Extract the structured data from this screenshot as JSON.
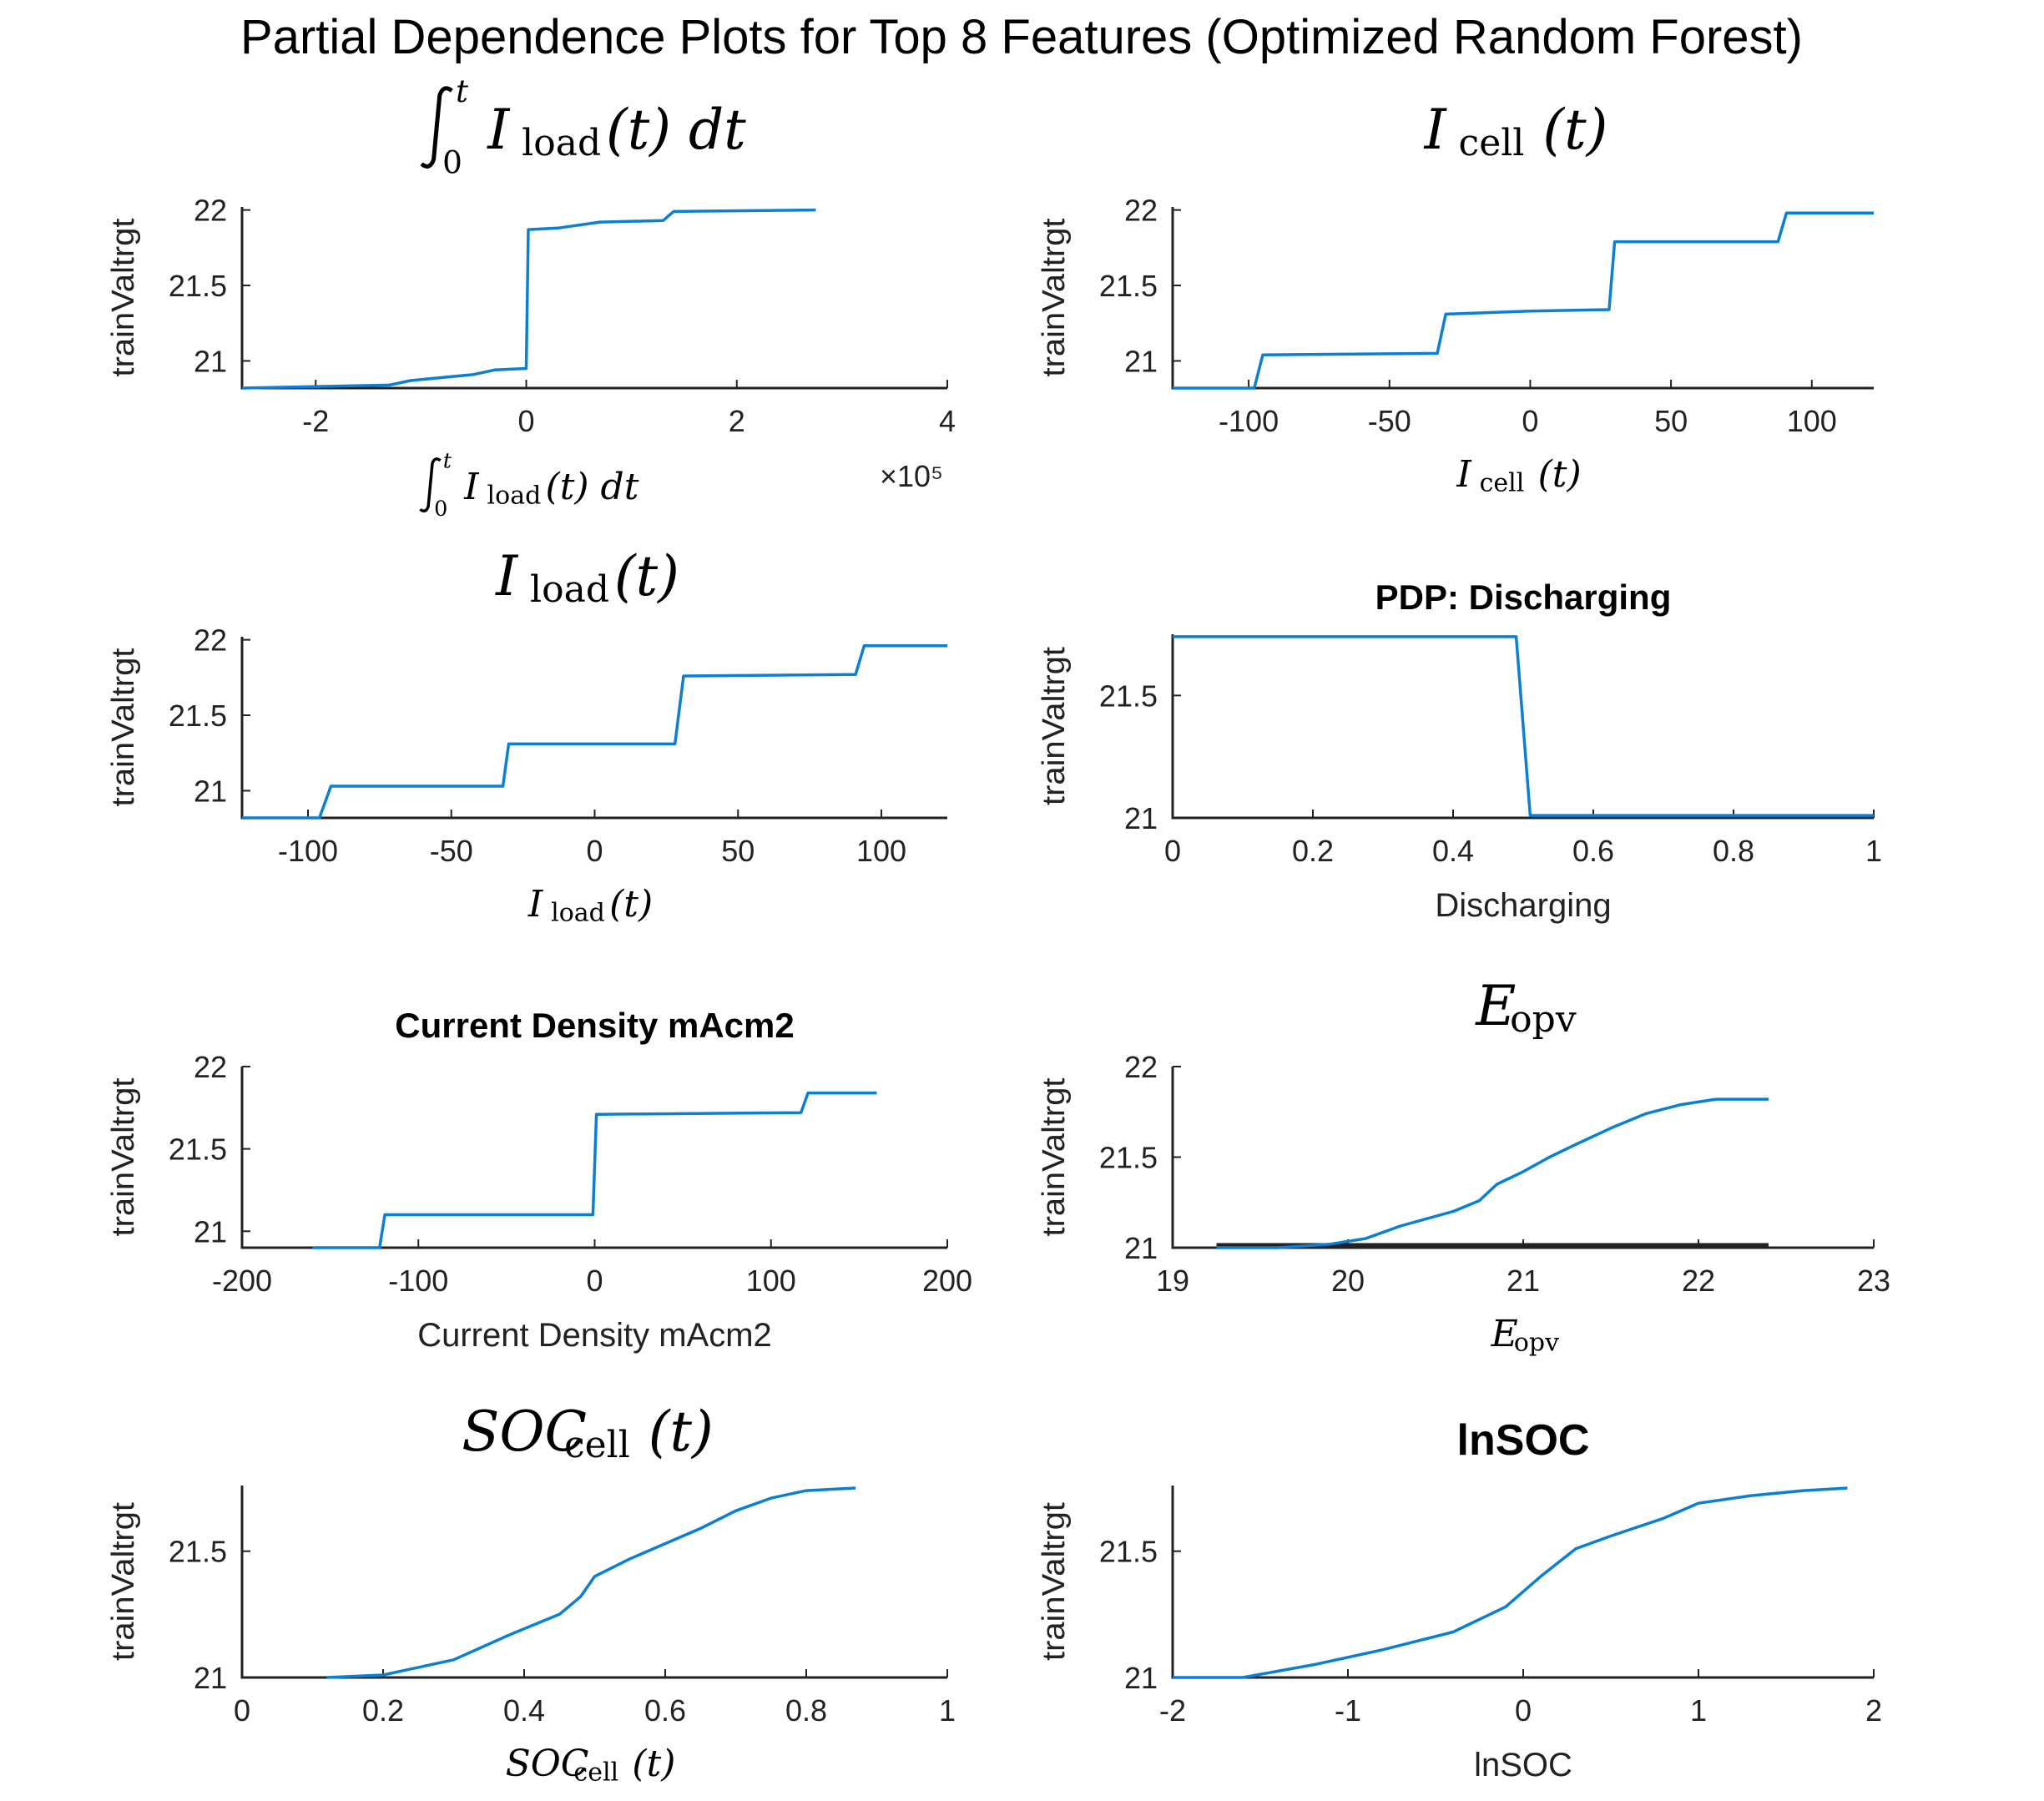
{
  "figure_title": "Partial Dependence Plots for Top 8 Features (Optimized Random Forest)",
  "colors": {
    "curve": "#0a7fd4",
    "axis": "#222222",
    "background": "#ffffff"
  },
  "chart_data": [
    {
      "type": "line",
      "title": "∫₀ᵗ I_load(t) dt",
      "title_parts": {
        "main": "I",
        "sub": "load",
        "suffix": "(t) dt",
        "integral_upper": "t",
        "integral_lower": "0"
      },
      "xlabel": "∫₀ᵗ I_load(t) dt",
      "xlabel_parts": {
        "main": "I",
        "sub": "load",
        "suffix": "(t) dt",
        "integral_upper": "t",
        "integral_lower": "0"
      },
      "ylabel": "trainValtrgt",
      "x_exponent_label": "×10⁵",
      "xlim": [
        -2.7,
        4.0
      ],
      "ylim": [
        20.82,
        22.02
      ],
      "xticks": [
        -2,
        0,
        2,
        4
      ],
      "xtick_labels": [
        "-2",
        "0",
        "2",
        "4"
      ],
      "yticks": [
        21,
        21.5,
        22
      ],
      "ytick_labels": [
        "21",
        "21.5",
        "22"
      ],
      "x": [
        -2.7,
        -1.3,
        -1.1,
        -0.5,
        -0.3,
        0.0,
        0.02,
        0.3,
        0.7,
        1.3,
        1.4,
        2.75
      ],
      "y": [
        20.82,
        20.84,
        20.87,
        20.91,
        20.94,
        20.95,
        21.87,
        21.88,
        21.92,
        21.93,
        21.99,
        22.0
      ]
    },
    {
      "type": "line",
      "title": "I_cell(t)",
      "title_parts": {
        "main": "I",
        "sub": "cell",
        "suffix": "(t)"
      },
      "xlabel": "I_cell(t)",
      "xlabel_parts": {
        "main": "I",
        "sub": "cell",
        "suffix": "(t)"
      },
      "ylabel": "trainValtrgt",
      "xlim": [
        -127,
        122
      ],
      "ylim": [
        20.82,
        22.02
      ],
      "xticks": [
        -100,
        -50,
        0,
        50,
        100
      ],
      "xtick_labels": [
        "-100",
        "-50",
        "0",
        "50",
        "100"
      ],
      "yticks": [
        21,
        21.5,
        22
      ],
      "ytick_labels": [
        "21",
        "21.5",
        "22"
      ],
      "x": [
        -127,
        -98,
        -95,
        -33,
        -30,
        0,
        28,
        30,
        88,
        91,
        122
      ],
      "y": [
        20.82,
        20.82,
        21.04,
        21.05,
        21.31,
        21.33,
        21.34,
        21.79,
        21.79,
        21.98,
        21.98
      ]
    },
    {
      "type": "line",
      "title": "I_load(t)",
      "title_parts": {
        "main": "I",
        "sub": "load",
        "suffix": "(t)"
      },
      "xlabel": "I_load(t)",
      "xlabel_parts": {
        "main": "I",
        "sub": "load",
        "suffix": "(t)"
      },
      "ylabel": "trainValtrgt",
      "xlim": [
        -123,
        123
      ],
      "ylim": [
        20.82,
        22.02
      ],
      "xticks": [
        -100,
        -50,
        0,
        50,
        100
      ],
      "xtick_labels": [
        "-100",
        "-50",
        "0",
        "50",
        "100"
      ],
      "yticks": [
        21,
        21.5,
        22
      ],
      "ytick_labels": [
        "21",
        "21.5",
        "22"
      ],
      "x": [
        -123,
        -96,
        -92,
        -32,
        -30,
        28,
        31,
        91,
        94,
        123
      ],
      "y": [
        20.82,
        20.82,
        21.03,
        21.03,
        21.31,
        21.31,
        21.76,
        21.77,
        21.96,
        21.96
      ]
    },
    {
      "type": "line",
      "title": "PDP: Discharging",
      "xlabel": "Discharging",
      "ylabel": "trainValtrgt",
      "xlim": [
        0,
        1
      ],
      "ylim": [
        21.0,
        21.75
      ],
      "xticks": [
        0,
        0.2,
        0.4,
        0.6,
        0.8,
        1
      ],
      "xtick_labels": [
        "0",
        "0.2",
        "0.4",
        "0.6",
        "0.8",
        "1"
      ],
      "yticks": [
        21,
        21.5
      ],
      "ytick_labels": [
        "21",
        "21.5"
      ],
      "x": [
        0,
        0.49,
        0.51,
        1.0
      ],
      "y": [
        21.74,
        21.74,
        21.01,
        21.01
      ]
    },
    {
      "type": "line",
      "title": "Current Density mAcm2",
      "xlabel": "Current Density mAcm2",
      "ylabel": "trainValtrgt",
      "xlim": [
        -200,
        200
      ],
      "ylim": [
        20.9,
        22.0
      ],
      "xticks": [
        -200,
        -100,
        0,
        100,
        200
      ],
      "xtick_labels": [
        "-200",
        "-100",
        "0",
        "100",
        "200"
      ],
      "yticks": [
        21,
        21.5,
        22
      ],
      "ytick_labels": [
        "21",
        "21.5",
        "22"
      ],
      "x": [
        -160,
        -122,
        -119,
        -1,
        1,
        117,
        121,
        160
      ],
      "y": [
        20.9,
        20.9,
        21.1,
        21.1,
        21.71,
        21.72,
        21.84,
        21.84
      ]
    },
    {
      "type": "line",
      "title": "E_opv",
      "title_parts": {
        "main": "E",
        "sub": "opv",
        "suffix": ""
      },
      "xlabel": "E_opv",
      "xlabel_parts": {
        "main": "E",
        "sub": "opv",
        "suffix": ""
      },
      "ylabel": "trainValtrgt",
      "xlim": [
        19,
        23
      ],
      "ylim": [
        21.0,
        22.0
      ],
      "xticks": [
        19,
        20,
        21,
        22,
        23
      ],
      "xtick_labels": [
        "19",
        "20",
        "21",
        "22",
        "23"
      ],
      "yticks": [
        21,
        21.5,
        22
      ],
      "ytick_labels": [
        "21",
        "21.5",
        "22"
      ],
      "rug_range": [
        19.25,
        22.4
      ],
      "x": [
        19.25,
        19.6,
        19.9,
        20.1,
        20.3,
        20.6,
        20.75,
        20.85,
        21.0,
        21.15,
        21.3,
        21.5,
        21.7,
        21.9,
        22.1,
        22.4
      ],
      "y": [
        21.0,
        21.0,
        21.02,
        21.05,
        21.12,
        21.2,
        21.26,
        21.35,
        21.42,
        21.5,
        21.57,
        21.66,
        21.74,
        21.79,
        21.82,
        21.82
      ]
    },
    {
      "type": "line",
      "title": "SOC_cell(t)",
      "title_parts": {
        "main": "SOC",
        "sub": "cell",
        "suffix": "(t)"
      },
      "xlabel": "SOC_cell(t)",
      "xlabel_parts": {
        "main": "SOC",
        "sub": "cell",
        "suffix": "(t)"
      },
      "ylabel": "trainValtrgt",
      "xlim": [
        0,
        1
      ],
      "ylim": [
        21.0,
        21.76
      ],
      "xticks": [
        0,
        0.2,
        0.4,
        0.6,
        0.8,
        1
      ],
      "xtick_labels": [
        "0",
        "0.2",
        "0.4",
        "0.6",
        "0.8",
        "1"
      ],
      "yticks": [
        21,
        21.5
      ],
      "ytick_labels": [
        "21",
        "21.5"
      ],
      "x": [
        0.12,
        0.2,
        0.3,
        0.38,
        0.45,
        0.48,
        0.5,
        0.55,
        0.6,
        0.65,
        0.7,
        0.75,
        0.8,
        0.87
      ],
      "y": [
        21.0,
        21.01,
        21.07,
        21.17,
        21.25,
        21.32,
        21.4,
        21.47,
        21.53,
        21.59,
        21.66,
        21.71,
        21.74,
        21.75
      ]
    },
    {
      "type": "line",
      "title": "lnSOC",
      "xlabel": "lnSOC",
      "ylabel": "trainValtrgt",
      "xlim": [
        -2,
        2
      ],
      "ylim": [
        21.0,
        21.76
      ],
      "xticks": [
        -2,
        -1,
        0,
        1,
        2
      ],
      "xtick_labels": [
        "-2",
        "-1",
        "0",
        "1",
        "2"
      ],
      "yticks": [
        21,
        21.5
      ],
      "ytick_labels": [
        "21",
        "21.5"
      ],
      "x": [
        -2.0,
        -1.6,
        -1.2,
        -0.8,
        -0.4,
        -0.1,
        0.1,
        0.3,
        0.5,
        0.8,
        1.0,
        1.3,
        1.6,
        1.85
      ],
      "y": [
        21.0,
        21.0,
        21.05,
        21.11,
        21.18,
        21.28,
        21.4,
        21.51,
        21.56,
        21.63,
        21.69,
        21.72,
        21.74,
        21.75
      ]
    }
  ]
}
